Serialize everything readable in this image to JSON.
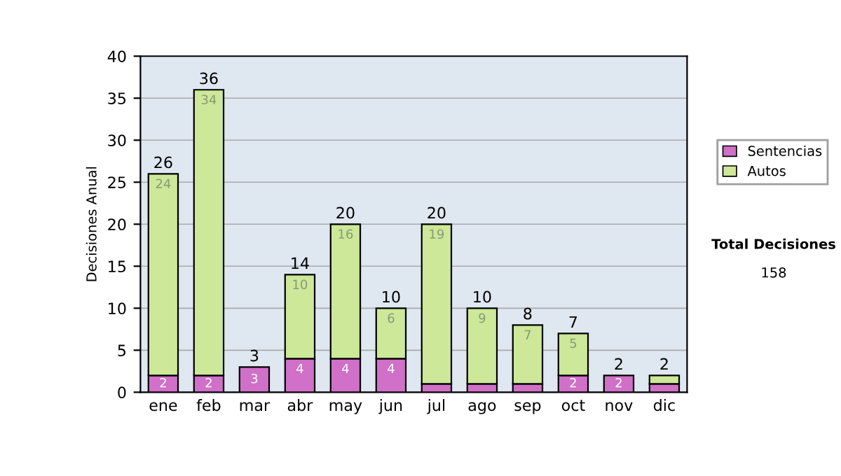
{
  "chart_data": {
    "type": "bar",
    "ylabel": "Decisiones Anual",
    "stacked": true,
    "categories": [
      "ene",
      "feb",
      "mar",
      "abr",
      "may",
      "jun",
      "jul",
      "ago",
      "sep",
      "oct",
      "nov",
      "dic"
    ],
    "series": [
      {
        "name": "Sentencias",
        "color": "#d070c8",
        "values": [
          2,
          2,
          3,
          4,
          4,
          4,
          1,
          1,
          1,
          2,
          2,
          1
        ],
        "value_labels": [
          "2",
          "2",
          "3",
          "4",
          "4",
          "4",
          null,
          null,
          null,
          "2",
          "2",
          null
        ]
      },
      {
        "name": "Autos",
        "color": "#cce898",
        "values": [
          24,
          34,
          null,
          10,
          16,
          6,
          19,
          9,
          7,
          5,
          null,
          1
        ],
        "value_labels": [
          "24",
          "34",
          null,
          "10",
          "16",
          "6",
          "19",
          "9",
          "7",
          "5",
          null,
          null
        ]
      }
    ],
    "totals": [
      "26",
      "36",
      "3",
      "14",
      "20",
      "10",
      "20",
      "10",
      "8",
      "7",
      "2",
      "2"
    ],
    "ylim": [
      0,
      40
    ],
    "yticks": [
      0,
      5,
      10,
      15,
      20,
      25,
      30,
      35,
      40
    ],
    "grid": "y",
    "legend": "right",
    "annotations": [
      "Total Decisiones",
      "158"
    ]
  }
}
